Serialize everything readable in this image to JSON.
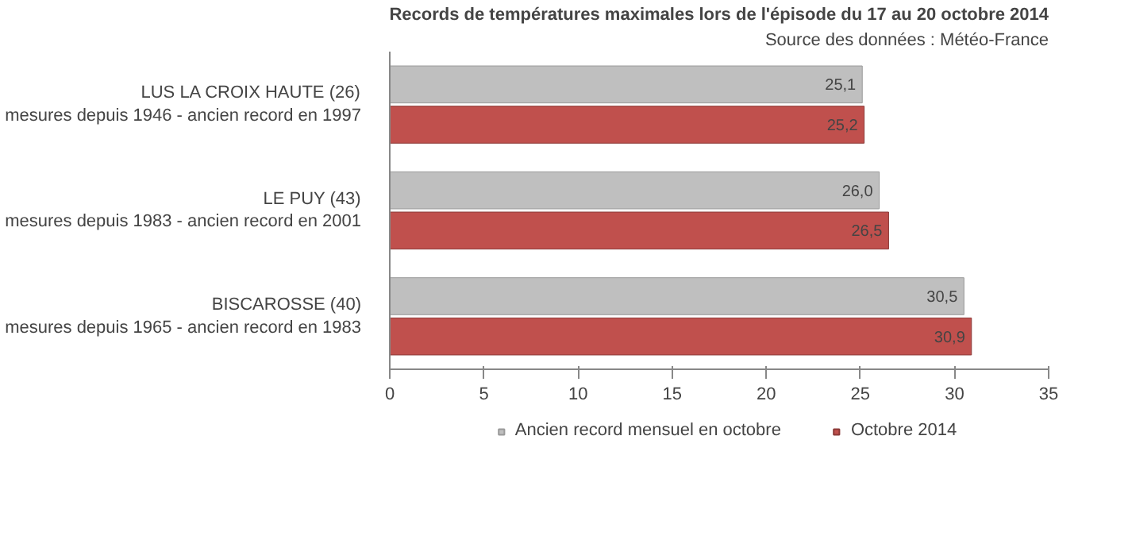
{
  "chart_data": {
    "type": "bar",
    "orientation": "horizontal",
    "title": "Records de températures maximales lors de l'épisode du 17 au 20 octobre 2014",
    "annotations": [
      "Source des données : Météo-France"
    ],
    "categories": [
      "LUS LA CROIX HAUTE (26)\nmesures depuis 1946 - ancien record en 1997",
      "LE PUY (43)\nmesures depuis 1983 - ancien record en 2001",
      "BISCAROSSE (40)\nmesures depuis 1965 - ancien record en 1983"
    ],
    "series": [
      {
        "name": "Ancien record mensuel en octobre",
        "color": "#bfbfbf",
        "values": [
          25.1,
          26.0,
          30.5
        ],
        "value_labels": [
          "25,1",
          "26,0",
          "30,5"
        ]
      },
      {
        "name": "Octobre 2014",
        "color": "#c0504d",
        "values": [
          25.2,
          26.5,
          30.9
        ],
        "value_labels": [
          "25,2",
          "26,5",
          "30,9"
        ]
      }
    ],
    "xlim": [
      0,
      35
    ],
    "xticks": [
      0,
      5,
      10,
      15,
      20,
      25,
      30,
      35
    ],
    "grid": false,
    "legend": "bottom"
  }
}
